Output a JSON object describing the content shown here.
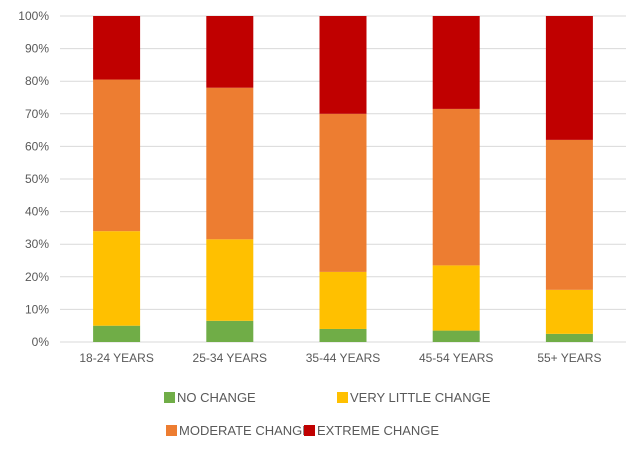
{
  "chart_data": {
    "type": "bar",
    "stacked": true,
    "percent_stacked": true,
    "categories": [
      "18-24 YEARS",
      "25-34 YEARS",
      "35-44 YEARS",
      "45-54 YEARS",
      "55+ YEARS"
    ],
    "series": [
      {
        "name": "NO CHANGE",
        "color": "#70AD47",
        "values": [
          5,
          6.5,
          4,
          3.5,
          2.5
        ]
      },
      {
        "name": "VERY LITTLE CHANGE",
        "color": "#FFC000",
        "values": [
          29,
          25,
          17.5,
          20,
          13.5
        ]
      },
      {
        "name": "MODERATE CHANGE",
        "color": "#ED7D31",
        "values": [
          46.5,
          46.5,
          48.5,
          48,
          46
        ]
      },
      {
        "name": "EXTREME CHANGE",
        "color": "#C00000",
        "values": [
          19.5,
          22,
          30,
          28.5,
          38
        ]
      }
    ],
    "y_ticks": [
      "0%",
      "10%",
      "20%",
      "30%",
      "40%",
      "50%",
      "60%",
      "70%",
      "80%",
      "90%",
      "100%"
    ],
    "ylim": [
      0,
      100
    ],
    "grid": true,
    "legend_position": "bottom"
  }
}
